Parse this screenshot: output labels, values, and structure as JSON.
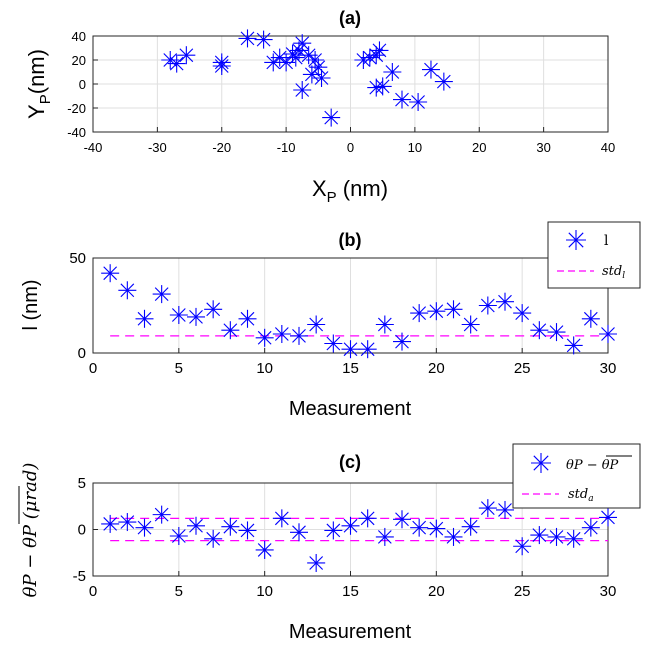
{
  "chart_data": [
    {
      "type": "scatter",
      "title": "(a)",
      "xlabel_main": "X",
      "xlabel_sub": "P",
      "xlabel_unit": " (nm)",
      "ylabel_main": "Y",
      "ylabel_sub": "P",
      "ylabel_unit": "(nm)",
      "xlim": [
        -40,
        40
      ],
      "ylim": [
        -40,
        40
      ],
      "xticks": [
        -40,
        -30,
        -20,
        -10,
        0,
        10,
        20,
        30,
        40
      ],
      "yticks": [
        -40,
        -20,
        0,
        20,
        40
      ],
      "grid": true,
      "marker_color": "#0000ff",
      "series": [
        {
          "x": [
            -28,
            -27,
            -25.5,
            -20,
            -20,
            -16,
            -13.5,
            -12,
            -11,
            -10,
            -9,
            -8.5,
            -8,
            -7.5,
            -7.5,
            -6.5,
            -6,
            -5.5,
            -5,
            -4.5,
            -3,
            2,
            3,
            4,
            4,
            4.5,
            5,
            6.5,
            8,
            10.5,
            12.5,
            14.5
          ],
          "y": [
            20,
            17,
            24,
            15,
            18,
            38,
            37,
            18,
            22,
            18,
            25,
            22,
            28,
            34,
            -5,
            24,
            8,
            20,
            14,
            5,
            -28,
            20,
            22,
            24,
            -3,
            28,
            -2,
            10,
            -13,
            -15,
            12,
            2
          ]
        }
      ]
    },
    {
      "type": "scatter",
      "title": "(b)",
      "xlabel": "Measurement",
      "ylabel": "l (nm)",
      "xlim": [
        0,
        30
      ],
      "ylim": [
        0,
        50
      ],
      "xticks": [
        0,
        5,
        10,
        15,
        20,
        25,
        30
      ],
      "yticks": [
        0,
        50
      ],
      "grid": true,
      "legend_position": "top-right",
      "legend": [
        {
          "label": "l",
          "style": "marker",
          "color": "#0000ff"
        },
        {
          "label": "std",
          "sub": "l",
          "style": "dashed",
          "color": "#ff00ff"
        }
      ],
      "series": [
        {
          "name": "l",
          "x": [
            1,
            2,
            3,
            4,
            5,
            6,
            7,
            8,
            9,
            10,
            11,
            12,
            13,
            14,
            15,
            16,
            17,
            18,
            19,
            20,
            21,
            22,
            23,
            24,
            25,
            26,
            27,
            28,
            29,
            30
          ],
          "y": [
            42,
            33,
            18,
            31,
            20,
            19,
            23,
            12,
            18,
            8,
            10,
            9,
            15,
            5,
            2,
            2,
            15,
            6,
            21,
            22,
            23,
            15,
            25,
            27,
            21,
            12,
            11,
            4,
            18,
            10
          ]
        },
        {
          "name": "std_l",
          "x": [
            1,
            30
          ],
          "y": [
            9,
            9
          ]
        }
      ]
    },
    {
      "type": "scatter",
      "title": "(c)",
      "xlabel": "Measurement",
      "ylabel": "θP − θP (μrad)",
      "xlim": [
        0,
        30
      ],
      "ylim": [
        -5,
        5
      ],
      "xticks": [
        0,
        5,
        10,
        15,
        20,
        25,
        30
      ],
      "yticks": [
        -5,
        0,
        5
      ],
      "grid": true,
      "legend_position": "top-right",
      "legend": [
        {
          "label": "θP − θP",
          "style": "marker",
          "color": "#0000ff"
        },
        {
          "label": "std",
          "sub": "a",
          "style": "dashed",
          "color": "#ff00ff"
        }
      ],
      "series": [
        {
          "name": "theta",
          "x": [
            1,
            2,
            3,
            4,
            5,
            6,
            7,
            8,
            9,
            10,
            11,
            12,
            13,
            14,
            15,
            16,
            17,
            18,
            19,
            20,
            21,
            22,
            23,
            24,
            25,
            26,
            27,
            28,
            29,
            30
          ],
          "y": [
            0.6,
            0.8,
            0.2,
            1.6,
            -0.7,
            0.4,
            -1.0,
            0.3,
            -0.1,
            -2.2,
            1.2,
            -0.3,
            -3.6,
            -0.1,
            0.4,
            1.2,
            -0.8,
            1.1,
            0.2,
            0.1,
            -0.8,
            0.3,
            2.3,
            2.1,
            -1.8,
            -0.6,
            -0.8,
            -1.0,
            0.2,
            1.3
          ]
        },
        {
          "name": "std_pos",
          "x": [
            1,
            30
          ],
          "y": [
            1.2,
            1.2
          ]
        },
        {
          "name": "std_neg",
          "x": [
            1,
            30
          ],
          "y": [
            -1.2,
            -1.2
          ]
        }
      ]
    }
  ]
}
